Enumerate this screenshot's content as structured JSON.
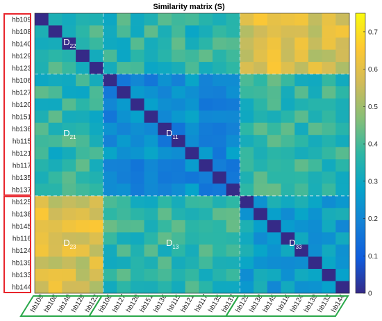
{
  "chart_data": {
    "type": "heatmap",
    "title": "Similarity matrix (S)",
    "labels": [
      "hb109",
      "hb108",
      "hb140",
      "hb129",
      "hb123",
      "hb106",
      "hb127",
      "hb120",
      "hb151",
      "hb136",
      "hb115",
      "hb121",
      "hb117",
      "hb135",
      "hb137",
      "hb125",
      "hb138",
      "hb145",
      "hb116",
      "hb124",
      "hb139",
      "hb133",
      "hb144"
    ],
    "groups": [
      {
        "name": "D22",
        "members": [
          "hb109",
          "hb108",
          "hb140",
          "hb129",
          "hb123"
        ]
      },
      {
        "name": "D11",
        "members": [
          "hb106",
          "hb127",
          "hb120",
          "hb151",
          "hb136",
          "hb115",
          "hb121",
          "hb117",
          "hb135",
          "hb137"
        ]
      },
      {
        "name": "D33",
        "members": [
          "hb125",
          "hb138",
          "hb145",
          "hb116",
          "hb124",
          "hb139",
          "hb133",
          "hb144"
        ]
      }
    ],
    "block_labels": [
      {
        "main": "D",
        "sub": "22"
      },
      {
        "main": "D",
        "sub": "21"
      },
      {
        "main": "D",
        "sub": "11"
      },
      {
        "main": "D",
        "sub": "23"
      },
      {
        "main": "D",
        "sub": "13"
      },
      {
        "main": "D",
        "sub": "33"
      }
    ],
    "block_means": {
      "D22": 0.38,
      "D11": 0.22,
      "D33": 0.27,
      "D21": 0.36,
      "D23": 0.58,
      "D13": 0.37
    },
    "colorbar": {
      "colormap": "parula",
      "range": [
        0,
        0.75
      ],
      "ticks": [
        0,
        0.1,
        0.2,
        0.3,
        0.4,
        0.5,
        0.6,
        0.7
      ],
      "tick_labels": [
        "0",
        "0.1",
        "0.2",
        "0.3",
        "0.4",
        "0.5",
        "0.6",
        "0.7"
      ]
    },
    "highlight": {
      "left_row_groups": [
        "outline-red",
        "outline-red"
      ],
      "bottom_col_groups": [
        "outline-green",
        "outline-green",
        "outline-green"
      ],
      "outline_red": "#e8242b",
      "outline_green": "#2aa84a"
    },
    "grid_dividers": "dashed white lines between groups"
  }
}
